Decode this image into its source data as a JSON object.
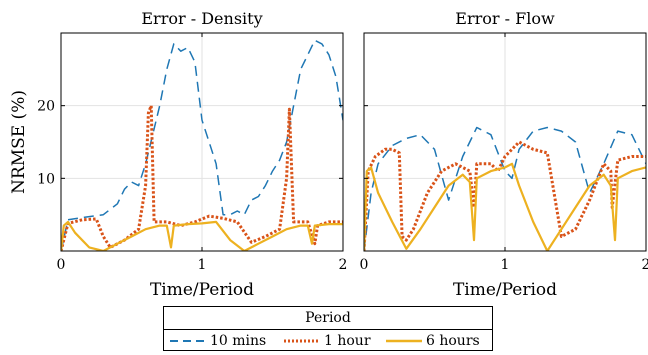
{
  "chart_data": [
    {
      "type": "line",
      "title": "Error - Density",
      "xlabel": "Time/Period",
      "ylabel": "NRMSE (%)",
      "xlim": [
        0,
        2
      ],
      "ylim": [
        0,
        30
      ],
      "xticks": [
        "0",
        "1",
        "2"
      ],
      "yticks": [
        "10",
        "20"
      ],
      "grid": true,
      "series": [
        {
          "name": "10 mins",
          "color": "#1f77b4",
          "dash": "dashed",
          "x": [
            0,
            0.05,
            0.15,
            0.3,
            0.4,
            0.45,
            0.5,
            0.55,
            0.6,
            0.65,
            0.7,
            0.75,
            0.8,
            0.85,
            0.9,
            0.95,
            1.0,
            1.05,
            1.1,
            1.15,
            1.2,
            1.25,
            1.3,
            1.35,
            1.4,
            1.45,
            1.5,
            1.55,
            1.6,
            1.65,
            1.7,
            1.75,
            1.8,
            1.85,
            1.9,
            1.95,
            2.0
          ],
          "y": [
            0,
            4.3,
            4.6,
            5.0,
            6.5,
            8.5,
            9.5,
            9.0,
            12.0,
            16.0,
            20.0,
            25.0,
            28.5,
            27.5,
            28.0,
            26.0,
            18.0,
            15.0,
            12.0,
            5.0,
            5.0,
            5.5,
            5.0,
            7.0,
            7.5,
            9.0,
            11.0,
            12.5,
            15.0,
            20.0,
            25.0,
            27.0,
            29.0,
            28.5,
            27.0,
            24.0,
            18.0
          ]
        },
        {
          "name": "1 hour",
          "color": "#d95319",
          "dash": "dotted",
          "x": [
            0,
            0.05,
            0.15,
            0.25,
            0.3,
            0.35,
            0.45,
            0.55,
            0.6,
            0.62,
            0.64,
            0.66,
            0.75,
            0.85,
            0.95,
            1.05,
            1.15,
            1.25,
            1.35,
            1.45,
            1.55,
            1.6,
            1.62,
            1.65,
            1.75,
            1.8,
            1.82,
            1.9,
            2.0
          ],
          "y": [
            0,
            3.8,
            4.3,
            4.4,
            2.0,
            0.5,
            1.5,
            3.0,
            9.0,
            19.0,
            20.0,
            4.0,
            4.0,
            3.5,
            4.0,
            4.8,
            4.5,
            4.0,
            1.2,
            2.0,
            3.0,
            10.0,
            19.5,
            4.0,
            4.0,
            1.0,
            3.5,
            4.0,
            4.0
          ]
        },
        {
          "name": "6 hours",
          "color": "#edb120",
          "dash": "solid",
          "x": [
            0,
            0.02,
            0.05,
            0.1,
            0.2,
            0.3,
            0.4,
            0.5,
            0.6,
            0.7,
            0.75,
            0.78,
            0.8,
            0.9,
            1.0,
            1.1,
            1.2,
            1.3,
            1.4,
            1.5,
            1.6,
            1.7,
            1.75,
            1.78,
            1.8,
            1.9,
            2.0
          ],
          "y": [
            0,
            3.5,
            4.0,
            2.5,
            0.5,
            0,
            1.0,
            2.0,
            3.0,
            3.5,
            3.5,
            0.5,
            3.5,
            3.7,
            3.8,
            4.0,
            1.5,
            0,
            1.0,
            2.0,
            3.0,
            3.5,
            3.5,
            1.0,
            3.5,
            3.7,
            3.7
          ]
        }
      ]
    },
    {
      "type": "line",
      "title": "Error - Flow",
      "xlabel": "Time/Period",
      "ylabel": "",
      "xlim": [
        0,
        2
      ],
      "ylim": [
        0,
        30
      ],
      "xticks": [
        "0",
        "1",
        "2"
      ],
      "yticks": [],
      "grid": true,
      "series": [
        {
          "name": "10 mins",
          "color": "#1f77b4",
          "dash": "dashed",
          "x": [
            0,
            0.05,
            0.1,
            0.2,
            0.3,
            0.4,
            0.5,
            0.6,
            0.7,
            0.8,
            0.9,
            1.0,
            1.05,
            1.1,
            1.2,
            1.3,
            1.4,
            1.5,
            1.6,
            1.7,
            1.8,
            1.9,
            2.0
          ],
          "y": [
            0,
            8.0,
            12.0,
            14.5,
            15.5,
            16.0,
            14.0,
            7.0,
            13.0,
            17.0,
            16.0,
            11.0,
            10.0,
            14.0,
            16.5,
            17.0,
            16.5,
            15.0,
            8.0,
            12.0,
            16.5,
            16.0,
            12.0
          ]
        },
        {
          "name": "1 hour",
          "color": "#d95319",
          "dash": "dotted",
          "x": [
            0,
            0.03,
            0.08,
            0.15,
            0.2,
            0.25,
            0.27,
            0.3,
            0.35,
            0.45,
            0.55,
            0.65,
            0.75,
            0.78,
            0.8,
            0.9,
            0.95,
            1.0,
            1.05,
            1.1,
            1.2,
            1.3,
            1.4,
            1.5,
            1.6,
            1.7,
            1.75,
            1.76,
            1.8,
            1.9,
            2.0
          ],
          "y": [
            0,
            11.0,
            13.0,
            14.0,
            14.0,
            13.5,
            2.0,
            1.5,
            3.0,
            8.0,
            11.0,
            12.0,
            11.0,
            6.0,
            12.0,
            12.0,
            11.0,
            13.0,
            14.0,
            15.0,
            14.0,
            13.5,
            2.0,
            3.0,
            7.0,
            12.0,
            11.0,
            6.0,
            12.5,
            13.0,
            13.0
          ]
        },
        {
          "name": "6 hours",
          "color": "#edb120",
          "dash": "solid",
          "x": [
            0,
            0.02,
            0.05,
            0.1,
            0.2,
            0.3,
            0.4,
            0.5,
            0.6,
            0.7,
            0.75,
            0.78,
            0.8,
            0.9,
            1.0,
            1.05,
            1.1,
            1.2,
            1.3,
            1.4,
            1.5,
            1.6,
            1.7,
            1.75,
            1.78,
            1.8,
            1.9,
            2.0
          ],
          "y": [
            0,
            11.0,
            11.5,
            8.0,
            4.0,
            0.3,
            3.0,
            6.0,
            9.0,
            10.5,
            9.5,
            1.5,
            10.0,
            11.0,
            11.5,
            12.0,
            9.0,
            4.0,
            0,
            3.0,
            6.0,
            9.0,
            10.5,
            9.0,
            1.5,
            10.0,
            11.0,
            11.5
          ]
        }
      ]
    }
  ],
  "legend": {
    "title": "Period",
    "placement": "bottom-center",
    "entries": [
      "10 mins",
      "1 hour",
      "6 hours"
    ]
  }
}
